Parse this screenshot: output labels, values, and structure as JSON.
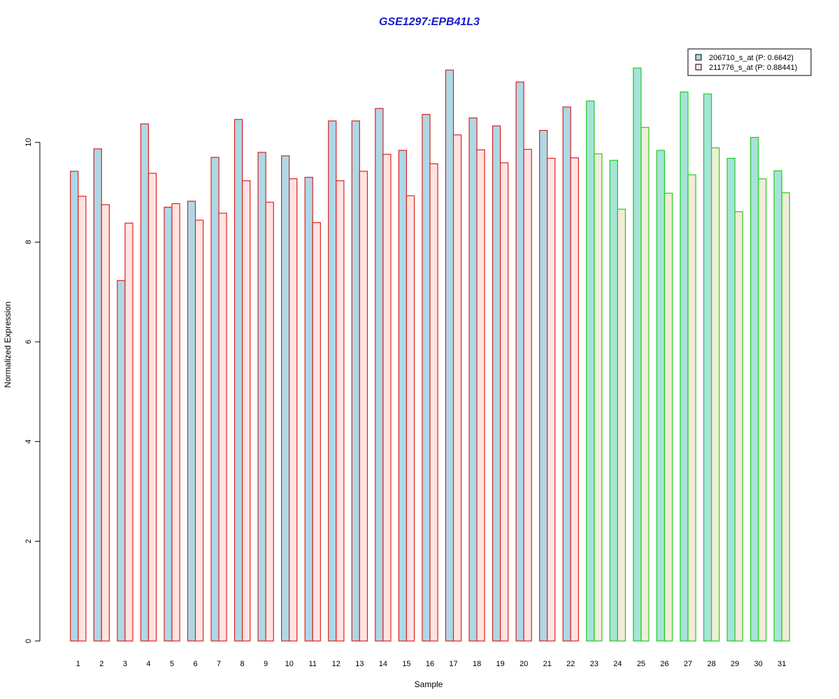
{
  "chart_data": {
    "type": "bar",
    "title": "GSE1297:EPB41L3",
    "xlabel": "Sample",
    "ylabel": "Normalized Expression",
    "ylim": [
      0,
      12
    ],
    "yticks": [
      0,
      2,
      4,
      6,
      8,
      10
    ],
    "categories": [
      "1",
      "2",
      "3",
      "4",
      "5",
      "6",
      "7",
      "8",
      "9",
      "10",
      "11",
      "12",
      "13",
      "14",
      "15",
      "16",
      "17",
      "18",
      "19",
      "20",
      "21",
      "22",
      "23",
      "24",
      "25",
      "26",
      "27",
      "28",
      "29",
      "30",
      "31"
    ],
    "series": [
      {
        "name": "206710_s_at (P: 0.6642)",
        "fill": "#add8e6",
        "values": [
          9.42,
          9.87,
          7.23,
          10.37,
          8.7,
          8.82,
          9.7,
          10.46,
          9.8,
          9.73,
          9.3,
          10.43,
          10.43,
          10.68,
          9.84,
          10.56,
          11.45,
          10.49,
          10.33,
          11.21,
          10.24,
          10.71,
          10.83,
          9.64,
          11.49,
          9.84,
          11.01,
          10.97,
          9.68,
          10.1,
          9.43
        ]
      },
      {
        "name": "211776_s_at (P: 0.88441)",
        "fill": "#ffe4e1",
        "values": [
          8.92,
          8.75,
          8.38,
          9.38,
          8.77,
          8.44,
          8.58,
          9.23,
          8.8,
          9.27,
          8.39,
          9.23,
          9.42,
          9.76,
          8.93,
          9.57,
          10.15,
          9.85,
          9.59,
          9.86,
          9.68,
          9.69,
          9.77,
          8.66,
          10.3,
          8.98,
          9.35,
          9.89,
          8.61,
          9.27,
          8.99
        ]
      }
    ],
    "series_fill_group2": [
      "#a6e3d9",
      "#f2ecd8"
    ],
    "group_border_colors": [
      "#dd2222",
      "#22cc22"
    ],
    "group1_samples": 22,
    "legend_position": "top-right",
    "grid": false,
    "title_color": "#1a1acc"
  }
}
